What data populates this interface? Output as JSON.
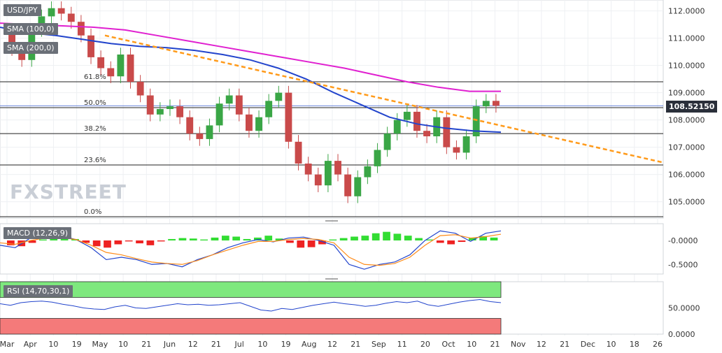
{
  "instrument": "USD/JPY",
  "legend": {
    "sma100": "SMA (100,0)",
    "sma200": "SMA (200,0)",
    "macd": "MACD (12,26,9)",
    "rsi": "RSI (14,70,30,1)"
  },
  "watermark": "FXSTREET",
  "last_price": "108.52150",
  "colors": {
    "up": "#3aa646",
    "down": "#c94a4a",
    "sma100": "#2244cc",
    "sma200": "#e020d0",
    "trend": "#ff9a1a",
    "macd_pos": "#33dd33",
    "macd_neg": "#ee2222",
    "macd_line": "#2244cc",
    "signal_line": "#ff8c1a",
    "rsi_line": "#2244cc",
    "rsi_ob": "#7ee87e",
    "rsi_os": "#f47a7a"
  },
  "chart_data": [
    {
      "type": "candlestick",
      "title": "USD/JPY",
      "y_ticks": [
        "112.0000",
        "111.0000",
        "110.0000",
        "109.0000",
        "108.0000",
        "107.0000",
        "106.0000",
        "105.0000"
      ],
      "ylim": [
        104.4,
        112.4
      ],
      "x_ticks": [
        "Mar",
        "Apr",
        "10",
        "19",
        "May",
        "10",
        "21",
        "Jun",
        "12",
        "21",
        "Jul",
        "10",
        "19",
        "Aug",
        "12",
        "21",
        "Sep",
        "11",
        "20",
        "Oct",
        "10",
        "21",
        "Nov",
        "12",
        "21",
        "Dec",
        "10",
        "18",
        "26"
      ],
      "fib_levels": [
        {
          "label": "61.8%",
          "value": 109.4
        },
        {
          "label": "50.0%",
          "value": 108.45
        },
        {
          "label": "38.2%",
          "value": 107.5
        },
        {
          "label": "23.6%",
          "value": 106.35
        },
        {
          "label": "0.0%",
          "value": 104.45
        }
      ],
      "sma100_values": [
        111.4,
        111.2,
        111.1,
        110.95,
        110.8,
        110.7,
        110.65,
        110.55,
        110.4,
        110.2,
        109.9,
        109.5,
        109.0,
        108.55,
        108.1,
        107.85,
        107.7,
        107.6,
        107.55
      ],
      "sma200_values": [
        111.55,
        111.5,
        111.45,
        111.4,
        111.3,
        111.1,
        110.9,
        110.7,
        110.5,
        110.3,
        110.1,
        109.9,
        109.65,
        109.4,
        109.2,
        109.05,
        109.05
      ],
      "trendline": [
        [
          111.1
        ],
        [
          106.45
        ]
      ],
      "closes": [
        110.6,
        110.2,
        111.3,
        111.8,
        112.1,
        111.9,
        111.6,
        111.1,
        110.3,
        109.9,
        109.6,
        110.4,
        109.4,
        108.9,
        108.2,
        108.4,
        108.5,
        108.1,
        107.5,
        107.3,
        107.8,
        108.6,
        108.9,
        108.2,
        107.6,
        108.1,
        108.7,
        109.0,
        107.2,
        106.4,
        106.0,
        105.6,
        106.5,
        106.0,
        105.2,
        105.9,
        106.3,
        106.9,
        107.5,
        108.0,
        108.3,
        107.6,
        107.4,
        108.1,
        107.0,
        106.8,
        107.4,
        108.5,
        108.7,
        108.52
      ]
    },
    {
      "type": "bar+line",
      "title": "MACD (12,26,9)",
      "y_ticks": [
        "-0.0000",
        "-0.5000"
      ],
      "ylim": [
        -0.7,
        0.35
      ],
      "histogram": [
        -0.1,
        -0.12,
        -0.05,
        0.02,
        0.05,
        0.04,
        0.03,
        -0.05,
        -0.12,
        -0.15,
        -0.08,
        -0.02,
        -0.06,
        -0.1,
        -0.02,
        0.03,
        0.05,
        0.04,
        0.02,
        0.06,
        0.1,
        0.08,
        0.03,
        0.06,
        0.1,
        0.04,
        -0.05,
        -0.15,
        -0.14,
        -0.08,
        0.02,
        0.05,
        0.08,
        0.1,
        0.15,
        0.18,
        0.14,
        0.1,
        0.05,
        0.02,
        -0.05,
        -0.08,
        -0.03,
        0.05,
        0.09,
        0.06
      ],
      "macd_line": [
        -0.1,
        -0.15,
        0.05,
        0.08,
        0.1,
        0.02,
        -0.15,
        -0.4,
        -0.35,
        -0.4,
        -0.5,
        -0.48,
        -0.55,
        -0.4,
        -0.3,
        -0.15,
        -0.05,
        0.02,
        -0.03,
        0.05,
        0.07,
        0.0,
        -0.1,
        -0.5,
        -0.6,
        -0.5,
        -0.45,
        -0.3,
        0.0,
        0.2,
        0.15,
        -0.02,
        0.15,
        0.2
      ],
      "signal_line": [
        -0.05,
        -0.08,
        0.0,
        0.05,
        0.06,
        0.02,
        -0.1,
        -0.25,
        -0.3,
        -0.38,
        -0.45,
        -0.48,
        -0.5,
        -0.42,
        -0.3,
        -0.2,
        -0.1,
        -0.02,
        -0.02,
        0.02,
        0.04,
        0.02,
        -0.05,
        -0.35,
        -0.5,
        -0.52,
        -0.48,
        -0.35,
        -0.1,
        0.1,
        0.12,
        0.05,
        0.08,
        0.13
      ]
    },
    {
      "type": "line",
      "title": "RSI (14,70,30,1)",
      "y_ticks": [
        "50.0000",
        "0.0000"
      ],
      "ylim": [
        0,
        100
      ],
      "values": [
        58,
        55,
        60,
        62,
        63,
        61,
        57,
        54,
        50,
        48,
        47,
        52,
        55,
        50,
        49,
        52,
        55,
        58,
        56,
        57,
        55,
        56,
        58,
        60,
        53,
        46,
        44,
        49,
        47,
        51,
        55,
        58,
        61,
        58,
        56,
        53,
        55,
        59,
        62,
        60,
        63,
        56,
        53,
        57,
        61,
        64,
        66,
        62,
        60
      ]
    }
  ]
}
